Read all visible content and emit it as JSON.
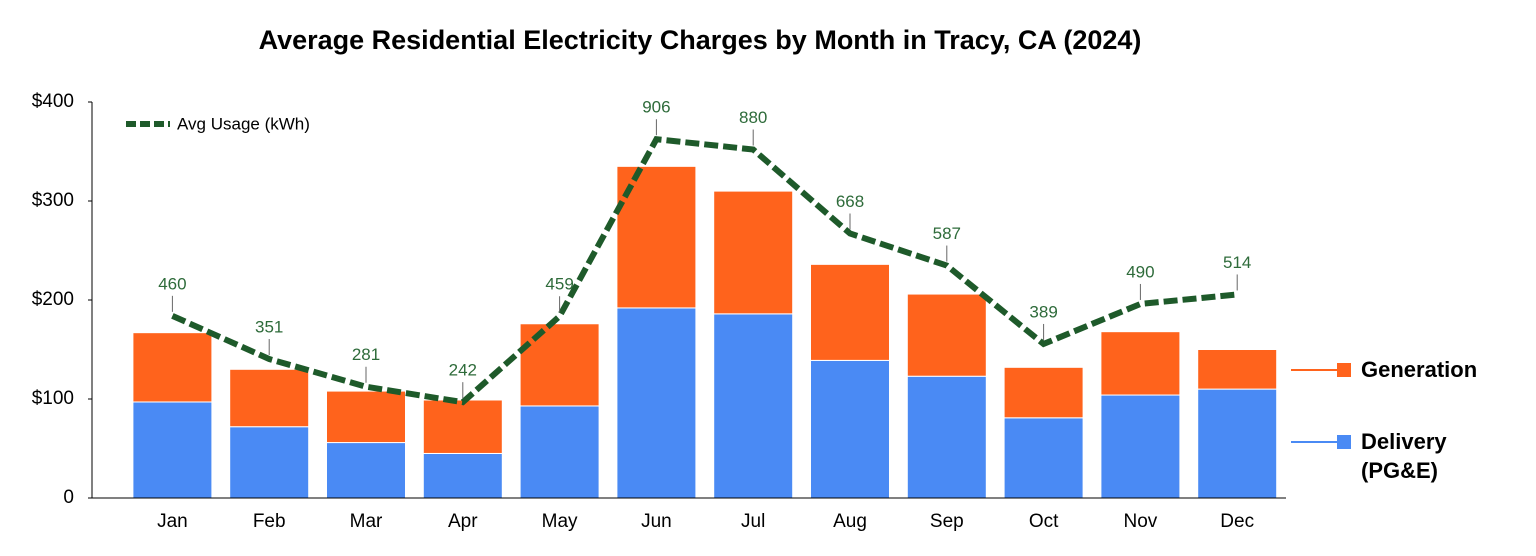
{
  "chart_data": {
    "type": "bar",
    "stacked": true,
    "title": "Average Residential Electricity Charges by Month in Tracy, CA (2024)",
    "categories": [
      "Jan",
      "Feb",
      "Mar",
      "Apr",
      "May",
      "Jun",
      "Jul",
      "Aug",
      "Sep",
      "Oct",
      "Nov",
      "Dec"
    ],
    "series": [
      {
        "name": "Delivery (PG&E)",
        "color": "#4a8af4",
        "values": [
          97,
          72,
          56,
          45,
          93,
          192,
          186,
          139,
          123,
          81,
          104,
          110
        ]
      },
      {
        "name": "Generation",
        "color": "#ff631c",
        "values": [
          70,
          58,
          52,
          54,
          83,
          143,
          124,
          97,
          83,
          51,
          64,
          40
        ]
      },
      {
        "name": "Avg Usage (kWh)",
        "type": "line",
        "axis": "y2",
        "color": "#1e5a2a",
        "values": [
          460,
          351,
          281,
          242,
          459,
          906,
          880,
          668,
          587,
          389,
          490,
          514
        ]
      }
    ],
    "ylim": [
      0,
      400
    ],
    "yticks": [
      0,
      {
        "value": 100,
        "label": "$100"
      },
      {
        "value": 200,
        "label": "$200"
      },
      {
        "value": 300,
        "label": "$300"
      },
      {
        "value": 400,
        "label": "$400"
      }
    ],
    "y2lim": [
      0,
      1000
    ],
    "grid": false
  }
}
